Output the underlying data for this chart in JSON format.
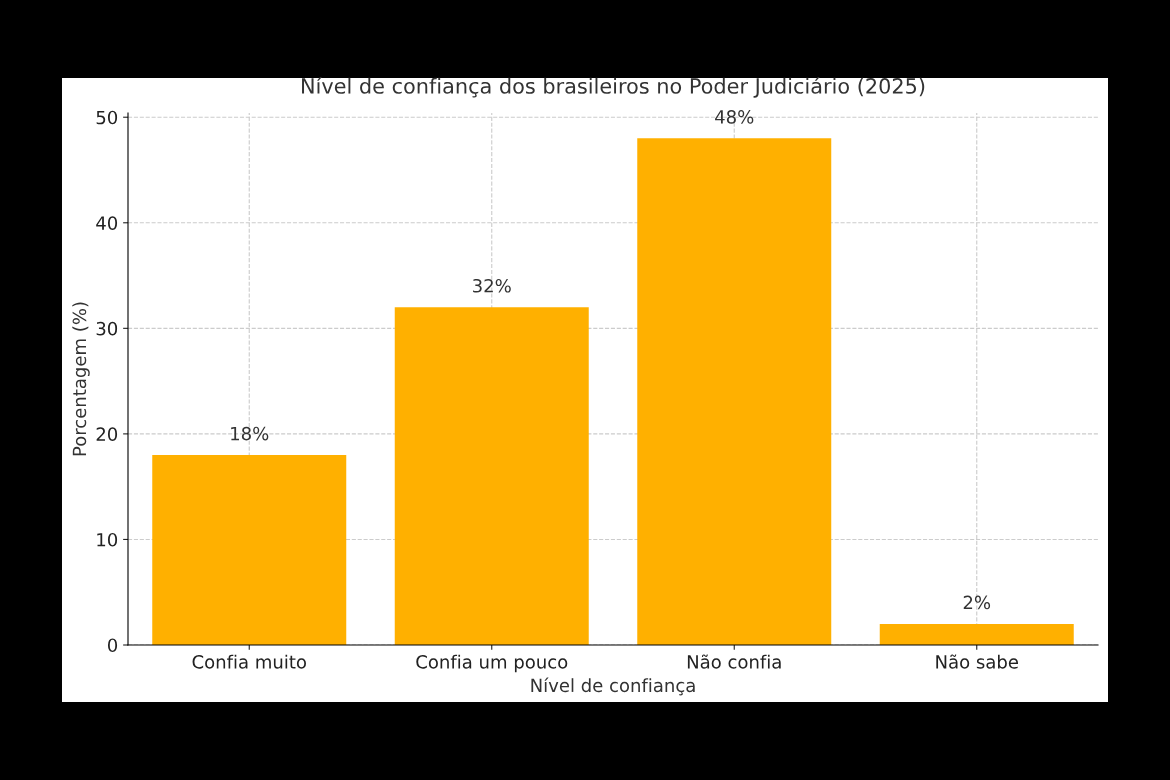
{
  "chart_data": {
    "type": "bar",
    "title": "Nível de confiança dos brasileiros no Poder Judiciário (2025)",
    "xlabel": "Nível de confiança",
    "ylabel": "Porcentagem (%)",
    "categories": [
      "Confia muito",
      "Confia um pouco",
      "Não confia",
      "Não sabe"
    ],
    "values": [
      18,
      32,
      48,
      2
    ],
    "value_labels": [
      "18%",
      "32%",
      "48%",
      "2%"
    ],
    "color": "#ffb000",
    "ylim": [
      0,
      50.4
    ],
    "yticks": [
      0,
      10,
      20,
      30,
      40,
      50
    ],
    "grid": true
  }
}
